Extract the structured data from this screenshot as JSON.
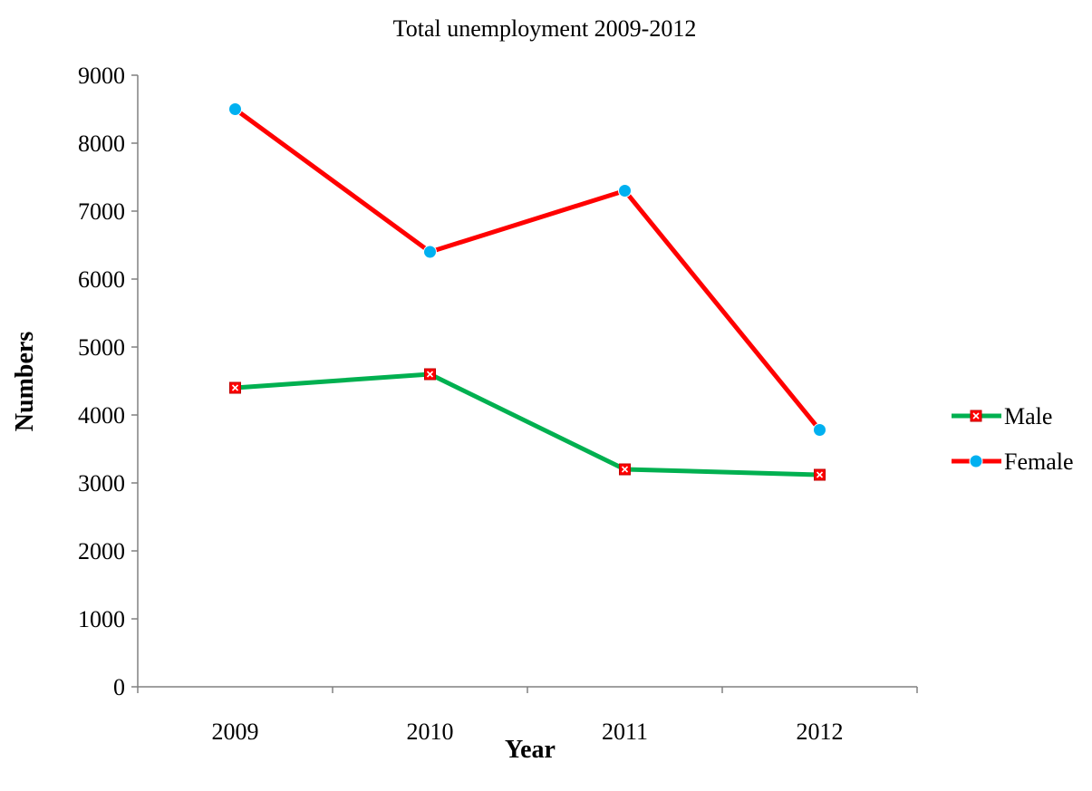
{
  "chart_data": {
    "type": "line",
    "title": "Total unemployment 2009-2012",
    "xlabel": "Year",
    "ylabel": "Numbers",
    "categories": [
      "2009",
      "2010",
      "2011",
      "2012"
    ],
    "ylim": [
      0,
      9000
    ],
    "yticks": [
      0,
      1000,
      2000,
      3000,
      4000,
      5000,
      6000,
      7000,
      8000,
      9000
    ],
    "grid": false,
    "legend_position": "right",
    "series": [
      {
        "name": "Male",
        "values": [
          4400,
          4600,
          3200,
          3120
        ],
        "color": "#00b050",
        "marker": "square-x",
        "marker_color": "#ff0000"
      },
      {
        "name": "Female",
        "values": [
          8500,
          6400,
          7300,
          3780
        ],
        "color": "#ff0000",
        "marker": "circle",
        "marker_color": "#00b0f0"
      }
    ]
  }
}
